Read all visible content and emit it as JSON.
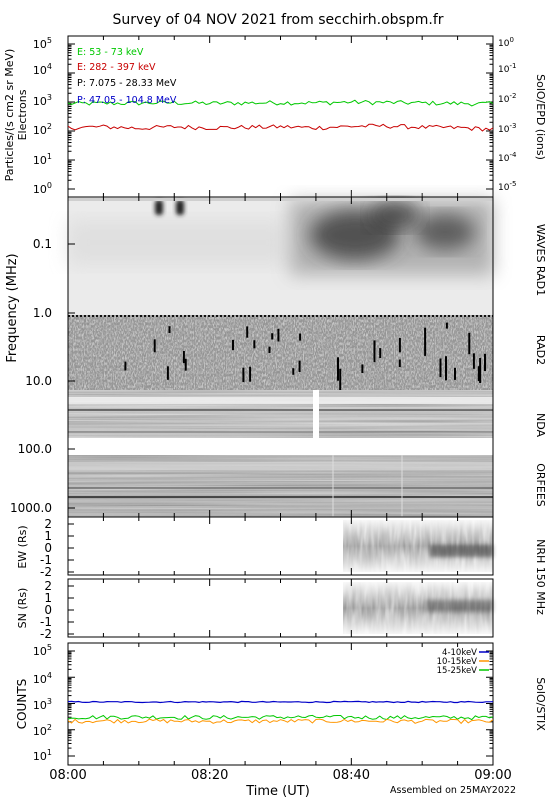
{
  "title": "Survey of 04 NOV 2021 from secchirh.obspm.fr",
  "footer": "Assembled on 25MAY2022",
  "x_axis": {
    "label": "Time (UT)",
    "ticks": [
      "08:00",
      "08:20",
      "08:40",
      "09:00"
    ],
    "range_minutes": [
      0,
      60
    ]
  },
  "colors": {
    "green": "#00c800",
    "red": "#c80000",
    "black": "#000000",
    "blue": "#0000c8",
    "orange": "#ff9600"
  },
  "panels": {
    "epd": {
      "ylabel_line1": "Particles/(s cm2 sr MeV)",
      "ylabel_line2": "Electrons",
      "right_label": "SolO/EPD  (ions)",
      "left_ticks": [
        {
          "base": "10",
          "exp": "5"
        },
        {
          "base": "10",
          "exp": "4"
        },
        {
          "base": "10",
          "exp": "3"
        },
        {
          "base": "10",
          "exp": "2"
        },
        {
          "base": "10",
          "exp": "1"
        },
        {
          "base": "10",
          "exp": "0"
        }
      ],
      "right_ticks": [
        {
          "base": "10",
          "exp": "0"
        },
        {
          "base": "10",
          "exp": "-1"
        },
        {
          "base": "10",
          "exp": "-2"
        },
        {
          "base": "10",
          "exp": "-3"
        },
        {
          "base": "10",
          "exp": "-4"
        },
        {
          "base": "10",
          "exp": "-5"
        }
      ],
      "legend": [
        {
          "text": "E: 53 - 73 keV",
          "color": "#00c800"
        },
        {
          "text": "E: 282 - 397 keV",
          "color": "#c80000"
        },
        {
          "text": "P: 7.075 - 28.33 MeV",
          "color": "#000000"
        },
        {
          "text": "P: 47.05 - 104.8 MeV",
          "color": "#0000c8"
        }
      ]
    },
    "radio": {
      "ylabel": "Frequency (MHz)",
      "ticks": [
        "0.1",
        "1.0",
        "10.0",
        "100.0",
        "1000.0"
      ],
      "sublabels": [
        "WAVES RAD1",
        "RAD2",
        "NDA",
        "ORFEES"
      ]
    },
    "nrh_ew": {
      "ylabel": "EW (Rs)",
      "ticks": [
        "2",
        "1",
        "0",
        "-1",
        "-2"
      ],
      "right_label": "NRH  150 MHz"
    },
    "nrh_sn": {
      "ylabel": "SN (Rs)",
      "ticks": [
        "2",
        "1",
        "0",
        "-1",
        "-2"
      ]
    },
    "stix": {
      "ylabel": "COUNTS",
      "right_label": "SolO/STIX",
      "ticks": [
        {
          "base": "10",
          "exp": "5"
        },
        {
          "base": "10",
          "exp": "4"
        },
        {
          "base": "10",
          "exp": "3"
        },
        {
          "base": "10",
          "exp": "2"
        },
        {
          "base": "10",
          "exp": "1"
        }
      ],
      "legend": [
        {
          "text": "4-10keV",
          "color": "#0000c8"
        },
        {
          "text": "10-15keV",
          "color": "#ff9600"
        },
        {
          "text": "15-25keV",
          "color": "#00c800"
        }
      ]
    }
  },
  "chart_data": [
    {
      "type": "line",
      "title": "Survey of 04 NOV 2021 from secchirh.obspm.fr",
      "panel": "SolO/EPD",
      "ylabel": "Particles/(s cm2 sr MeV) Electrons",
      "yscale": "log",
      "ylim": [
        0.5,
        100000
      ],
      "x_range_minutes": [
        0,
        60
      ],
      "series": [
        {
          "name": "E: 53 - 73 keV",
          "color": "#00c800",
          "points": [
            [
              0,
              880
            ],
            [
              5,
              900
            ],
            [
              10,
              920
            ],
            [
              15,
              950
            ],
            [
              20,
              900
            ],
            [
              25,
              930
            ],
            [
              30,
              960
            ],
            [
              35,
              940
            ],
            [
              40,
              1000
            ],
            [
              45,
              960
            ],
            [
              50,
              930
            ],
            [
              55,
              900
            ],
            [
              60,
              870
            ]
          ]
        },
        {
          "name": "E: 282 - 397 keV",
          "color": "#c80000",
          "points": [
            [
              0,
              130
            ],
            [
              5,
              140
            ],
            [
              10,
              125
            ],
            [
              15,
              140
            ],
            [
              20,
              130
            ],
            [
              25,
              135
            ],
            [
              30,
              140
            ],
            [
              35,
              130
            ],
            [
              40,
              145
            ],
            [
              45,
              150
            ],
            [
              50,
              135
            ],
            [
              55,
              130
            ],
            [
              60,
              115
            ]
          ]
        }
      ]
    },
    {
      "type": "line",
      "panel": "SolO/STIX",
      "ylabel": "COUNTS",
      "yscale": "log",
      "ylim": [
        5,
        120000
      ],
      "x_range_minutes": [
        0,
        60
      ],
      "series": [
        {
          "name": "4-10keV",
          "color": "#0000c8",
          "points": [
            [
              0,
              1150
            ],
            [
              10,
              1140
            ],
            [
              20,
              1150
            ],
            [
              30,
              1140
            ],
            [
              40,
              1150
            ],
            [
              50,
              1140
            ],
            [
              60,
              1150
            ]
          ]
        },
        {
          "name": "10-15keV",
          "color": "#ff9600",
          "points": [
            [
              0,
              215
            ],
            [
              10,
              220
            ],
            [
              20,
              210
            ],
            [
              30,
              215
            ],
            [
              40,
              218
            ],
            [
              50,
              212
            ],
            [
              60,
              210
            ]
          ]
        },
        {
          "name": "15-25keV",
          "color": "#00c800",
          "points": [
            [
              0,
              300
            ],
            [
              10,
              310
            ],
            [
              20,
              295
            ],
            [
              30,
              305
            ],
            [
              40,
              300
            ],
            [
              50,
              295
            ],
            [
              60,
              290
            ]
          ]
        }
      ]
    },
    {
      "type": "heatmap",
      "panel": "WAVES RAD1 / RAD2 / NDA / ORFEES",
      "ylabel": "Frequency (MHz)",
      "yscale": "log"
    },
    {
      "type": "heatmap",
      "panel": "NRH 150 MHz",
      "ylabel": "EW (Rs) / SN (Rs)",
      "data_start_minute": 38.5
    }
  ]
}
